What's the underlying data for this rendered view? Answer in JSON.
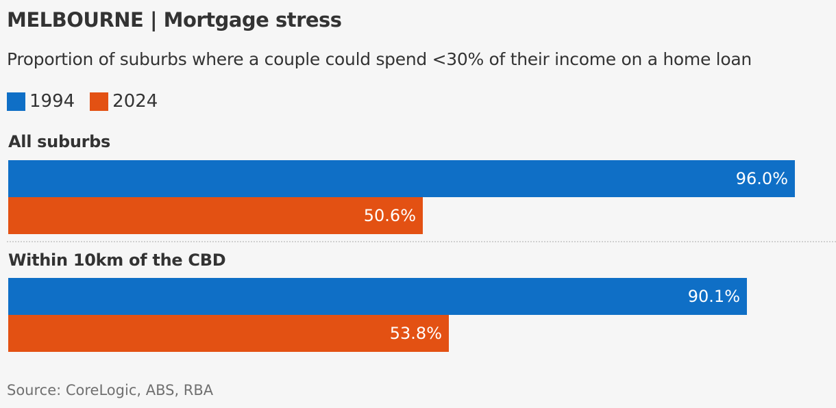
{
  "chart_data": {
    "type": "bar",
    "orientation": "horizontal",
    "title": "MELBOURNE | Mortgage stress",
    "subtitle": "Proportion of suburbs where a couple could spend <30% of their income on a home loan",
    "categories": [
      "All suburbs",
      "Within 10km of the CBD"
    ],
    "series": [
      {
        "name": "1994",
        "color": "#0f6fc6",
        "values": [
          96.0,
          90.1
        ],
        "labels": [
          "96.0%",
          "90.1%"
        ]
      },
      {
        "name": "2024",
        "color": "#e35113",
        "values": [
          50.6,
          53.8
        ],
        "labels": [
          "50.6%",
          "53.8%"
        ]
      }
    ],
    "xlim": [
      0,
      100
    ],
    "grid": false,
    "legend_position": "top-left",
    "source": "Source: CoreLogic, ABS, RBA"
  }
}
